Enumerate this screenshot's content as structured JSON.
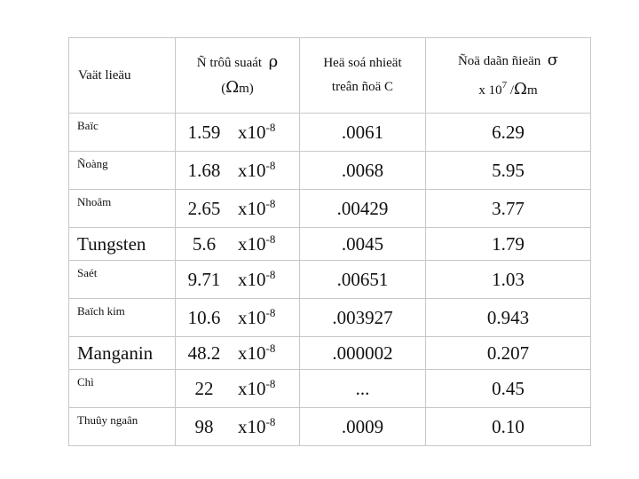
{
  "header": {
    "material": "Vaät lieäu",
    "resistivity_line1": "Ñ trôû suaát",
    "resistivity_symbol": "ρ",
    "resistivity_line2_open": "(",
    "resistivity_unit_symbol": "Ω",
    "resistivity_line2_close": "m)",
    "temp_coef_line1": "Heä soá nhieät",
    "temp_coef_line2": "treân ñoä C",
    "conductivity_line1": "Ñoä daãn ñieän",
    "conductivity_symbol": "σ",
    "conductivity_line2_prefix": "x 10",
    "conductivity_line2_exp": "7",
    "conductivity_line2_sep": " /",
    "conductivity_unit_symbol": "Ω",
    "conductivity_line2_suffix": "m"
  },
  "rows": [
    {
      "name": "Baïc",
      "coef": "1.59",
      "unit": "x10",
      "exp": "-8",
      "alpha": ".0061",
      "sigma": "6.29"
    },
    {
      "name": "Ñoàng",
      "coef": "1.68",
      "unit": "x10",
      "exp": "-8",
      "alpha": ".0068",
      "sigma": "5.95"
    },
    {
      "name": "Nhoâm",
      "coef": "2.65",
      "unit": "x10",
      "exp": "-8",
      "alpha": ".00429",
      "sigma": "3.77"
    },
    {
      "name": "Tungsten",
      "coef": "5.6",
      "unit": "x10",
      "exp": "-8",
      "alpha": ".0045",
      "sigma": "1.79"
    },
    {
      "name": "Saét",
      "coef": "9.71",
      "unit": "x10",
      "exp": "-8",
      "alpha": ".00651",
      "sigma": "1.03"
    },
    {
      "name": "Baïch kim",
      "coef": "10.6",
      "unit": "x10",
      "exp": "-8",
      "alpha": ".003927",
      "sigma": "0.943"
    },
    {
      "name": "Manganin",
      "coef": "48.2",
      "unit": "x10",
      "exp": "-8",
      "alpha": ".000002",
      "sigma": "0.207"
    },
    {
      "name": "Chì",
      "coef": "22",
      "unit": "x10",
      "exp": "-8",
      "alpha": "...",
      "sigma": "0.45"
    },
    {
      "name": "Thuûy ngaân",
      "coef": "98",
      "unit": "x10",
      "exp": "-8",
      "alpha": ".0009",
      "sigma": "0.10"
    }
  ]
}
